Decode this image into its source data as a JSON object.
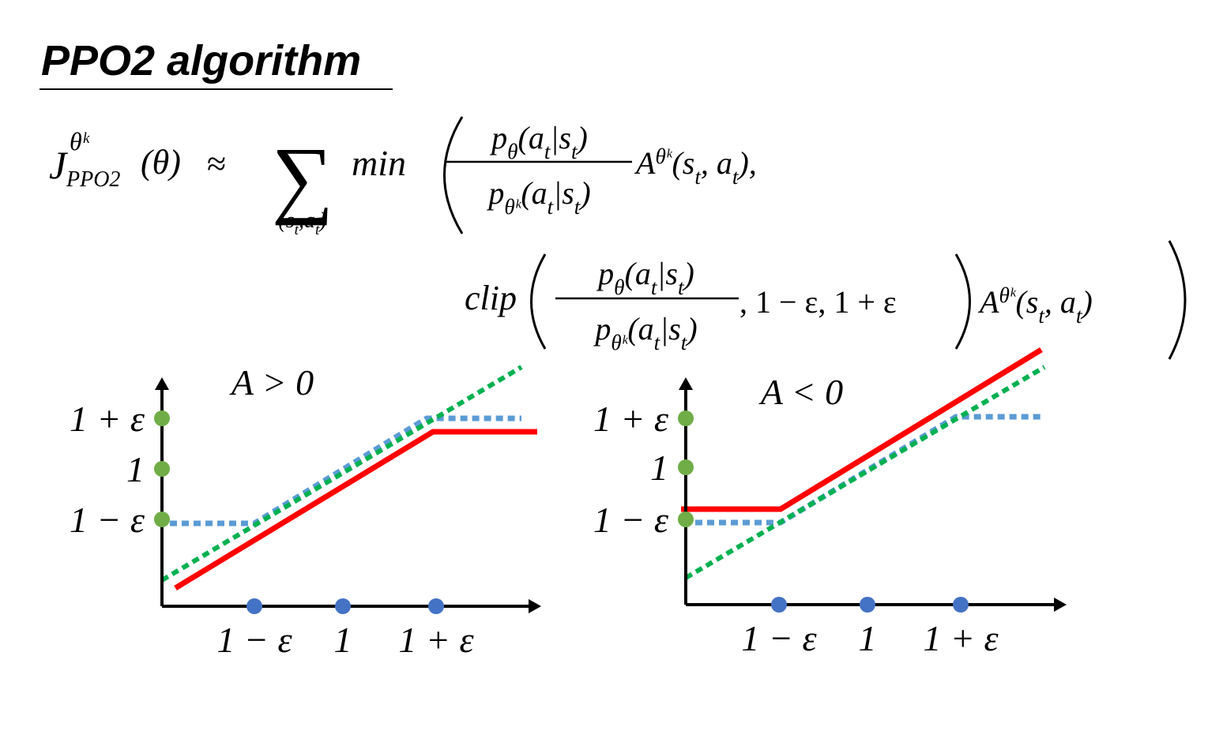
{
  "title": "PPO2 algorithm",
  "formula": {
    "lhs": {
      "base": "J",
      "sup": "θᵏ",
      "sub": "PPO2",
      "arg": "(θ)"
    },
    "approx": "≈",
    "sum": "∑",
    "sum_index": [
      "(s",
      "t",
      ",a",
      "t",
      ")"
    ],
    "min": "min",
    "numerator": [
      "p",
      "θ",
      "(a",
      "t",
      "|s",
      "t",
      ")"
    ],
    "denominator": [
      "p",
      "θᵏ",
      "(a",
      "t",
      "|s",
      "t",
      ")"
    ],
    "advantage": [
      "A",
      "θᵏ",
      "(s",
      "t",
      ", a",
      "t",
      ")"
    ],
    "comma": ",",
    "clip": "clip",
    "clip_args": ", 1 − ε, 1 + ε"
  },
  "panels": [
    {
      "title": "A > 0",
      "y_labels": [
        "1 + ε",
        "1",
        "1 − ε"
      ],
      "x_labels": [
        "1 − ε",
        "1",
        "1 + ε"
      ]
    },
    {
      "title": "A < 0",
      "y_labels": [
        "1 + ε",
        "1",
        "1 − ε"
      ],
      "x_labels": [
        "1 − ε",
        "1",
        "1 + ε"
      ]
    }
  ]
}
